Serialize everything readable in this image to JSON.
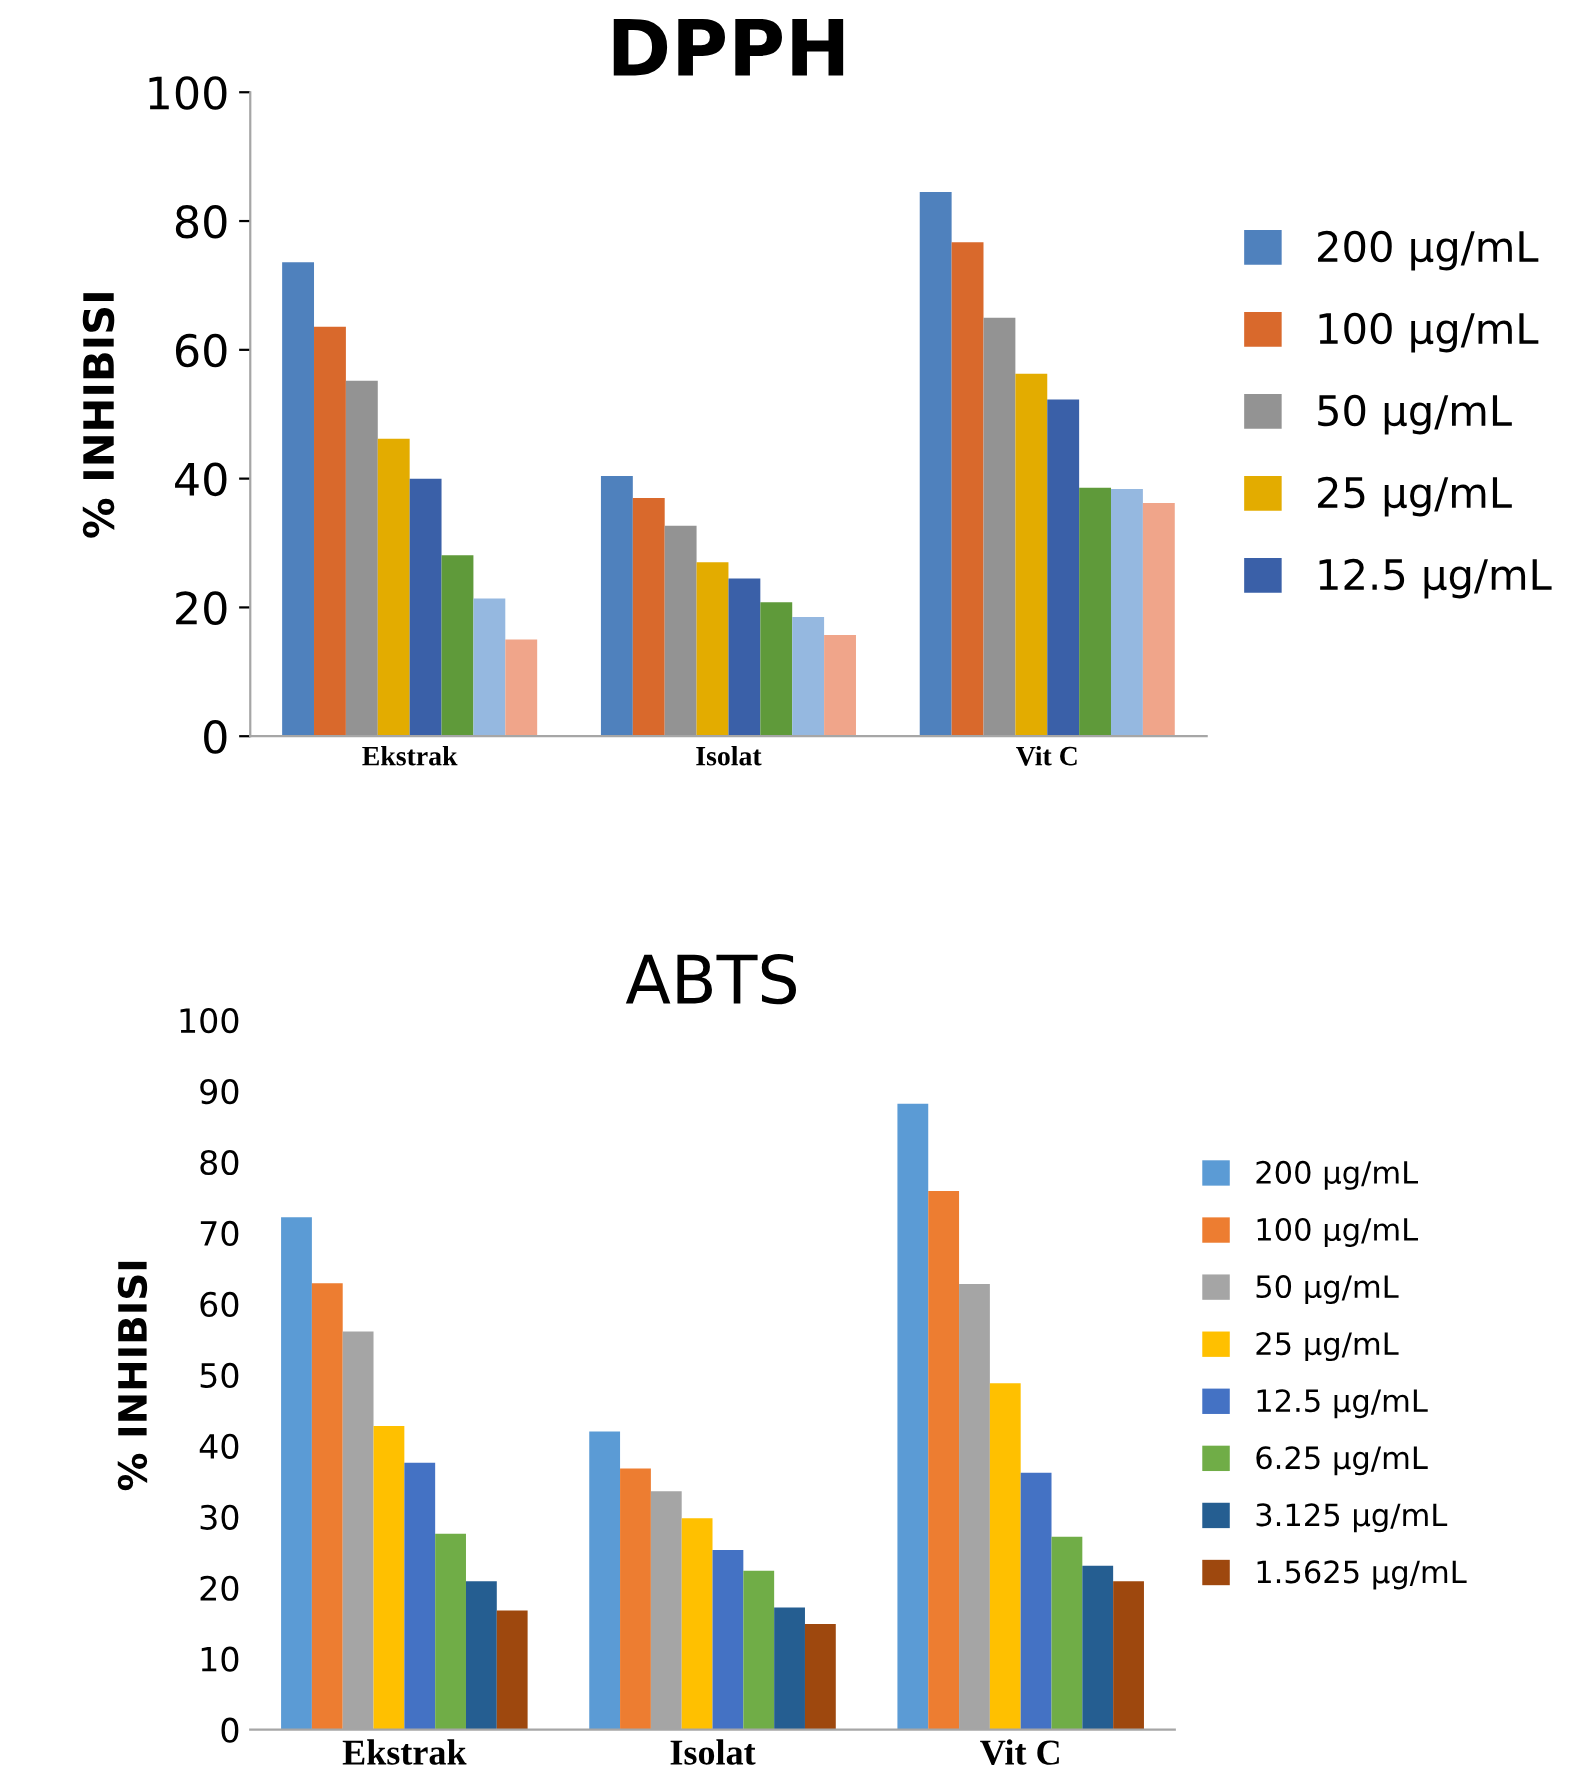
{
  "chart_data": [
    {
      "type": "bar",
      "title": "DPPH",
      "ylabel": "% INHIBISI",
      "categories": [
        "Ekstrak",
        "Isolat",
        "Vit C"
      ],
      "ylim": [
        0,
        100
      ],
      "yticks": [
        0,
        20,
        40,
        60,
        80,
        100
      ],
      "grid": false,
      "legend": "right",
      "series": [
        {
          "name": "200 µg/mL",
          "color": "#4f81bd",
          "values": [
            73.6,
            40.4,
            84.5
          ]
        },
        {
          "name": "100 µg/mL",
          "color": "#d9692c",
          "values": [
            63.6,
            37.0,
            76.7
          ]
        },
        {
          "name": "50 µg/mL",
          "color": "#939393",
          "values": [
            55.2,
            32.7,
            65.0
          ]
        },
        {
          "name": "25 µg/mL",
          "color": "#e3ac00",
          "values": [
            46.2,
            27.0,
            56.3
          ]
        },
        {
          "name": "12.5 µg/mL",
          "color": "#3a60a8",
          "values": [
            40.0,
            24.5,
            52.3
          ]
        },
        {
          "color": "#5f9a3a",
          "values": [
            28.1,
            20.8,
            38.6
          ]
        },
        {
          "color": "#95b8e0",
          "values": [
            21.4,
            18.5,
            38.4
          ]
        },
        {
          "color": "#f0a58a",
          "values": [
            15.0,
            15.7,
            36.2
          ]
        }
      ]
    },
    {
      "type": "bar",
      "title": "ABTS",
      "ylabel": "% INHIBISI",
      "categories": [
        "Ekstrak",
        "Isolat",
        "Vit C"
      ],
      "ylim": [
        0,
        100
      ],
      "yticks": [
        0,
        10,
        20,
        30,
        40,
        50,
        60,
        70,
        80,
        90,
        100
      ],
      "grid": false,
      "legend": "right",
      "series": [
        {
          "name": "200 µg/mL",
          "color": "#5b9bd5",
          "values": [
            72.2,
            42.0,
            88.2
          ]
        },
        {
          "name": "100 µg/mL",
          "color": "#ed7d31",
          "values": [
            62.9,
            36.8,
            75.9
          ]
        },
        {
          "name": "50 µg/mL",
          "color": "#a5a5a5",
          "values": [
            56.1,
            33.6,
            62.8
          ]
        },
        {
          "name": "25 µg/mL",
          "color": "#ffc000",
          "values": [
            42.8,
            29.8,
            48.8
          ]
        },
        {
          "name": "12.5 µg/mL",
          "color": "#4472c4",
          "values": [
            37.6,
            25.3,
            36.2
          ]
        },
        {
          "name": "6.25 µg/mL",
          "color": "#70ad47",
          "values": [
            27.6,
            22.4,
            27.2
          ]
        },
        {
          "name": "3.125 µg/mL",
          "color": "#255e91",
          "values": [
            20.9,
            17.2,
            23.1
          ]
        },
        {
          "name": "1.5625 µg/mL",
          "color": "#9e480e",
          "values": [
            16.8,
            14.9,
            20.9
          ]
        }
      ]
    }
  ]
}
